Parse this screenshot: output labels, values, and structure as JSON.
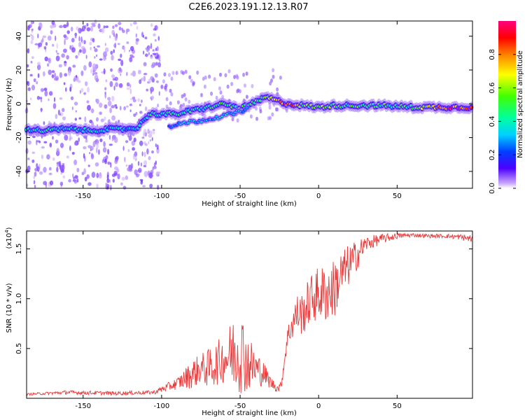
{
  "title": "C2E6.2023.191.12.13.R07",
  "chart_data": [
    {
      "type": "heatmap",
      "xlabel": "Height of straight line (km)",
      "ylabel": "Frequency (Hz)",
      "xlim": [
        -186,
        98
      ],
      "ylim": [
        -50,
        49
      ],
      "xticks": [
        -150,
        -100,
        -50,
        0,
        50
      ],
      "yticks": [
        -40,
        -20,
        0,
        20,
        40
      ],
      "colorbar": {
        "label": "Normalized spectral amplitude",
        "range": [
          0,
          1
        ],
        "ticks": [
          "0.0",
          "0.2",
          "0.4",
          "0.6",
          "0.8"
        ],
        "tick_values": [
          0,
          0.2,
          0.4,
          0.6,
          0.8
        ],
        "colormap": "rainbow"
      },
      "ridge": [
        {
          "x": -185,
          "f": -15,
          "a": 0.35
        },
        {
          "x": -175,
          "f": -16,
          "a": 0.45
        },
        {
          "x": -165,
          "f": -15,
          "a": 0.4
        },
        {
          "x": -155,
          "f": -15,
          "a": 0.35
        },
        {
          "x": -145,
          "f": -16,
          "a": 0.4
        },
        {
          "x": -135,
          "f": -15,
          "a": 0.35
        },
        {
          "x": -125,
          "f": -15,
          "a": 0.35
        },
        {
          "x": -115,
          "f": -14,
          "a": 0.3
        },
        {
          "x": -108,
          "f": -6,
          "a": 0.4
        },
        {
          "x": -100,
          "f": -6,
          "a": 0.45
        },
        {
          "x": -90,
          "f": -6,
          "a": 0.45
        },
        {
          "x": -80,
          "f": -4,
          "a": 0.45
        },
        {
          "x": -70,
          "f": -2,
          "a": 0.45
        },
        {
          "x": -60,
          "f": 0,
          "a": 0.5
        },
        {
          "x": -50,
          "f": -3,
          "a": 0.5
        },
        {
          "x": -40,
          "f": 1,
          "a": 0.55
        },
        {
          "x": -33,
          "f": 4,
          "a": 0.6
        },
        {
          "x": -27,
          "f": 2,
          "a": 0.7
        },
        {
          "x": -20,
          "f": 0,
          "a": 0.95
        },
        {
          "x": -10,
          "f": -1,
          "a": 0.5
        },
        {
          "x": 0,
          "f": -2,
          "a": 0.6
        },
        {
          "x": 10,
          "f": -1,
          "a": 0.55
        },
        {
          "x": 20,
          "f": -1,
          "a": 0.5
        },
        {
          "x": 40,
          "f": -1,
          "a": 0.5
        },
        {
          "x": 60,
          "f": -2,
          "a": 0.5
        },
        {
          "x": 80,
          "f": -2,
          "a": 0.85
        },
        {
          "x": 98,
          "f": -2,
          "a": 0.95
        }
      ],
      "lower_branch": [
        {
          "x": -95,
          "f": -14,
          "a": 0.3
        },
        {
          "x": -85,
          "f": -11,
          "a": 0.35
        },
        {
          "x": -75,
          "f": -10,
          "a": 0.35
        },
        {
          "x": -65,
          "f": -8,
          "a": 0.35
        },
        {
          "x": -55,
          "f": -6,
          "a": 0.35
        },
        {
          "x": -45,
          "f": -3,
          "a": 0.35
        }
      ]
    },
    {
      "type": "line",
      "xlabel": "Height of straight line (km)",
      "ylabel": "SNR (10 * v/v)",
      "multiplier_label": "(x10",
      "multiplier_exp": "4",
      "multiplier_close": ")",
      "xlim": [
        -186,
        98
      ],
      "ylim": [
        0,
        1.68
      ],
      "xticks": [
        -150,
        -100,
        -50,
        0,
        50
      ],
      "yticks": [
        0.5,
        1.0,
        1.5
      ],
      "ytick_labels": [
        "0.5",
        "1.0",
        "1.5"
      ],
      "series": [
        {
          "color": "#e83a3a",
          "x": [
            -186,
            -160,
            -130,
            -105,
            -90,
            -80,
            -75,
            -70,
            -65,
            -60,
            -55,
            -52,
            -48,
            -45,
            -40,
            -35,
            -30,
            -26,
            -24,
            -22,
            -20,
            -18,
            -14,
            -10,
            -5,
            0,
            5,
            10,
            15,
            20,
            25,
            30,
            40,
            50,
            60,
            70,
            80,
            90,
            98
          ],
          "y": [
            0.04,
            0.06,
            0.05,
            0.06,
            0.15,
            0.25,
            0.3,
            0.3,
            0.35,
            0.4,
            0.45,
            0.5,
            0.45,
            0.35,
            0.3,
            0.25,
            0.15,
            0.1,
            0.12,
            0.35,
            0.6,
            0.7,
            0.85,
            0.85,
            1.0,
            1.05,
            1.05,
            1.1,
            1.25,
            1.35,
            1.45,
            1.55,
            1.6,
            1.63,
            1.64,
            1.63,
            1.63,
            1.62,
            1.6
          ],
          "spread": [
            0.01,
            0.02,
            0.02,
            0.02,
            0.06,
            0.15,
            0.15,
            0.2,
            0.22,
            0.25,
            0.35,
            0.45,
            0.4,
            0.3,
            0.2,
            0.12,
            0.06,
            0.04,
            0.05,
            0.08,
            0.1,
            0.15,
            0.2,
            0.22,
            0.25,
            0.28,
            0.3,
            0.3,
            0.25,
            0.2,
            0.15,
            0.08,
            0.05,
            0.03,
            0.02,
            0.02,
            0.02,
            0.03,
            0.04
          ]
        }
      ]
    }
  ]
}
